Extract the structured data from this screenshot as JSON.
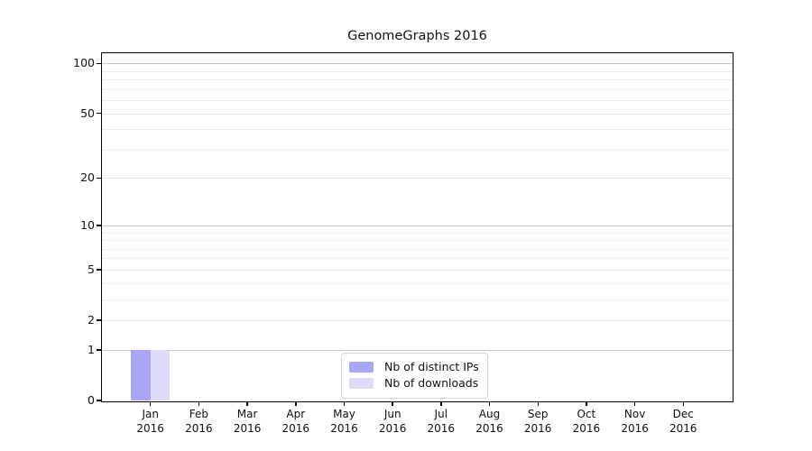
{
  "title": "GenomeGraphs 2016",
  "colors": {
    "series_distinct_ips": "#a7a7f4",
    "series_downloads": "#dcdcf8",
    "grid_minor": "#ececec",
    "grid_labeled": "#e4e4e4",
    "grid_major": "#c6c6c6",
    "spine": "#000000",
    "legend_border": "#d4d4d4",
    "text": "#111111"
  },
  "chart_data": {
    "type": "bar",
    "title": "GenomeGraphs 2016",
    "xlabel": "",
    "ylabel": "",
    "scale": "log1p",
    "grid": true,
    "ylim": [
      0,
      115
    ],
    "yticks": [
      0,
      1,
      2,
      5,
      10,
      20,
      50,
      100
    ],
    "major_gridlines": [
      1,
      10,
      100
    ],
    "minor_gridlines": [
      3,
      4,
      6,
      7,
      8,
      9,
      30,
      40,
      60,
      70,
      80,
      90
    ],
    "categories": [
      "Jan 2016",
      "Feb 2016",
      "Mar 2016",
      "Apr 2016",
      "May 2016",
      "Jun 2016",
      "Jul 2016",
      "Aug 2016",
      "Sep 2016",
      "Oct 2016",
      "Nov 2016",
      "Dec 2016"
    ],
    "series": [
      {
        "name": "Nb of distinct IPs",
        "color": "#a7a7f4",
        "values": [
          1,
          0,
          0,
          0,
          0,
          0,
          0,
          0,
          0,
          0,
          0,
          0
        ]
      },
      {
        "name": "Nb of downloads",
        "color": "#dcdcf8",
        "values": [
          1,
          0,
          0,
          0,
          0,
          0,
          0,
          0,
          0,
          0,
          0,
          0
        ]
      }
    ],
    "legend": {
      "position": "bottom-center"
    }
  }
}
